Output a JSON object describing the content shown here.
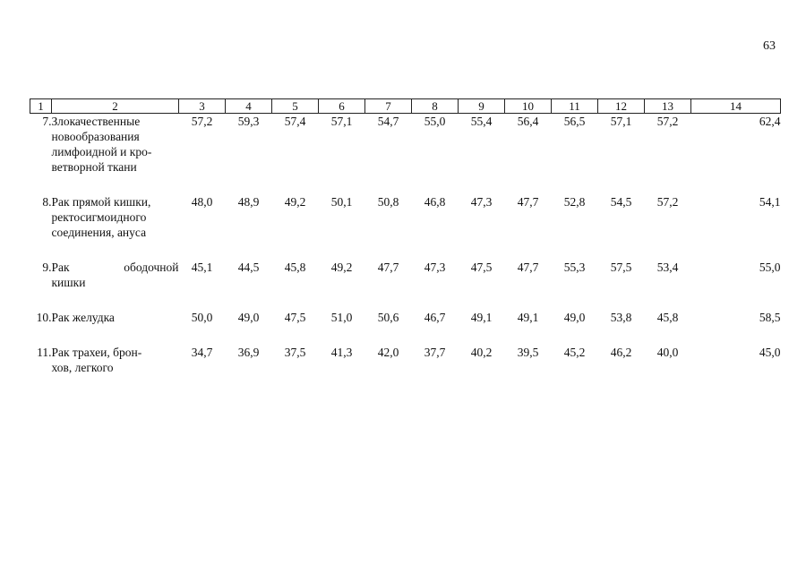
{
  "page_number": "63",
  "table": {
    "headers": [
      "1",
      "2",
      "3",
      "4",
      "5",
      "6",
      "7",
      "8",
      "9",
      "10",
      "11",
      "12",
      "13",
      "14"
    ],
    "rows": [
      {
        "num": "7.",
        "name": [
          "Злокачественные",
          "новообразования",
          "лимфоидной и кро-",
          "ветворной ткани"
        ],
        "values": [
          "57,2",
          "59,3",
          "57,4",
          "57,1",
          "54,7",
          "55,0",
          "55,4",
          "56,4",
          "56,5",
          "57,1",
          "57,2",
          "62,4"
        ]
      },
      {
        "num": "8.",
        "name": [
          "Рак прямой кишки,",
          "ректосигмоидного",
          "соединения, ануса"
        ],
        "values": [
          "48,0",
          "48,9",
          "49,2",
          "50,1",
          "50,8",
          "46,8",
          "47,3",
          "47,7",
          "52,8",
          "54,5",
          "57,2",
          "54,1"
        ]
      },
      {
        "num": "9.",
        "name": [
          "Рак ободочной",
          "кишки"
        ],
        "values": [
          "45,1",
          "44,5",
          "45,8",
          "49,2",
          "47,7",
          "47,3",
          "47,5",
          "47,7",
          "55,3",
          "57,5",
          "53,4",
          "55,0"
        ]
      },
      {
        "num": "10.",
        "name": [
          "Рак желудка"
        ],
        "values": [
          "50,0",
          "49,0",
          "47,5",
          "51,0",
          "50,6",
          "46,7",
          "49,1",
          "49,1",
          "49,0",
          "53,8",
          "45,8",
          "58,5"
        ]
      },
      {
        "num": "11.",
        "name": [
          "Рак трахеи, брон-",
          "хов, легкого"
        ],
        "values": [
          "34,7",
          "36,9",
          "37,5",
          "41,3",
          "42,0",
          "37,7",
          "40,2",
          "39,5",
          "45,2",
          "46,2",
          "40,0",
          "45,0"
        ]
      }
    ]
  }
}
